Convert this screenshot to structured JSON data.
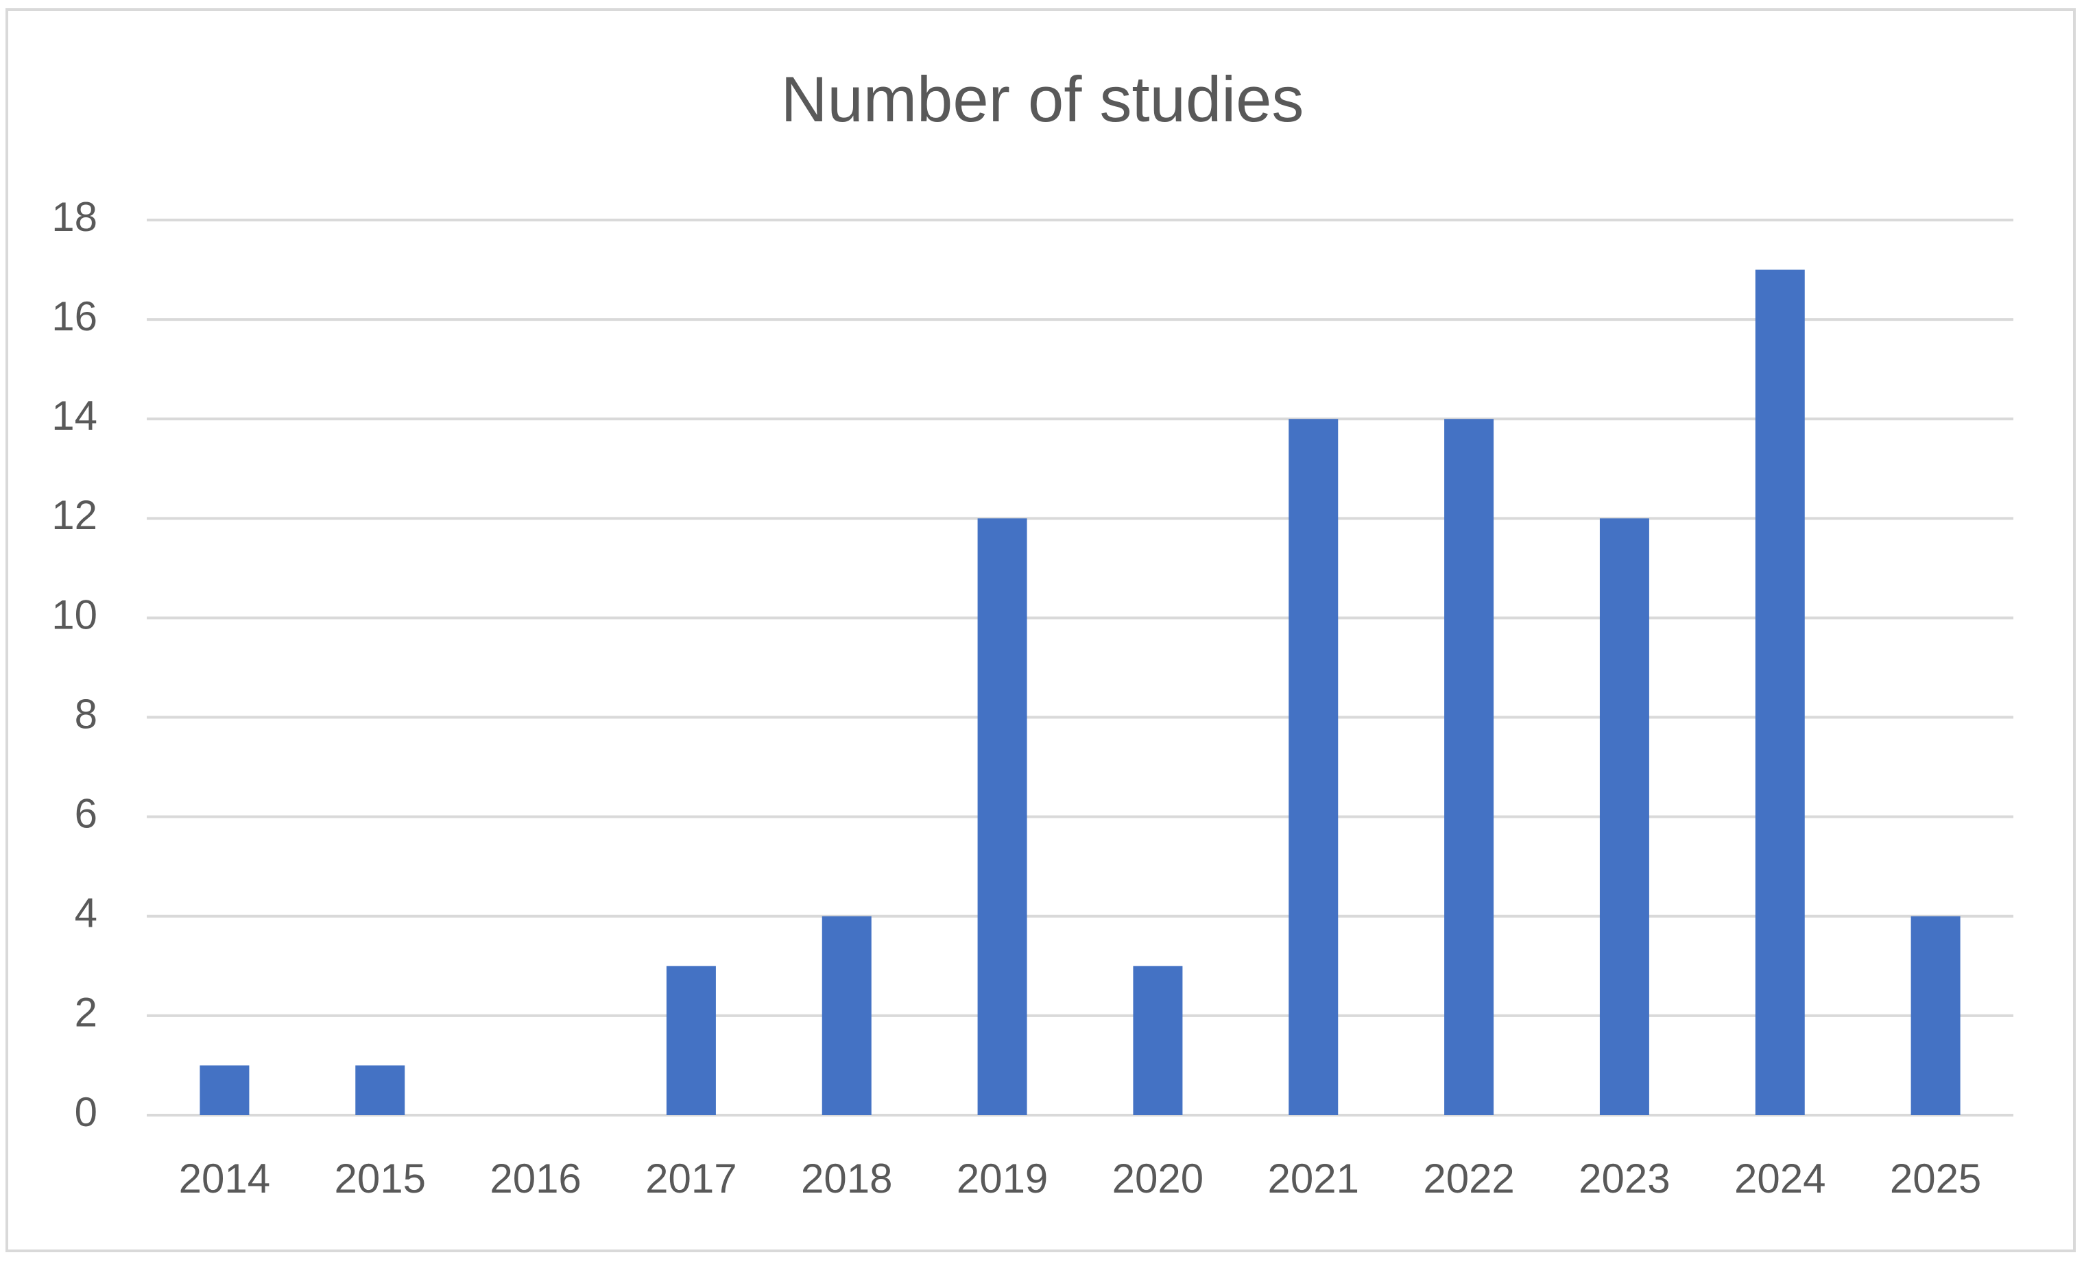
{
  "chart_data": {
    "type": "bar",
    "title": "Number of studies",
    "categories": [
      "2014",
      "2015",
      "2016",
      "2017",
      "2018",
      "2019",
      "2020",
      "2021",
      "2022",
      "2023",
      "2024",
      "2025"
    ],
    "values": [
      1,
      1,
      0,
      3,
      4,
      12,
      3,
      14,
      14,
      12,
      17,
      4
    ],
    "color": "#4472c4",
    "ylim": [
      0,
      18
    ],
    "yticks": [
      0,
      2,
      4,
      6,
      8,
      10,
      12,
      14,
      16,
      18
    ],
    "grid": true
  }
}
